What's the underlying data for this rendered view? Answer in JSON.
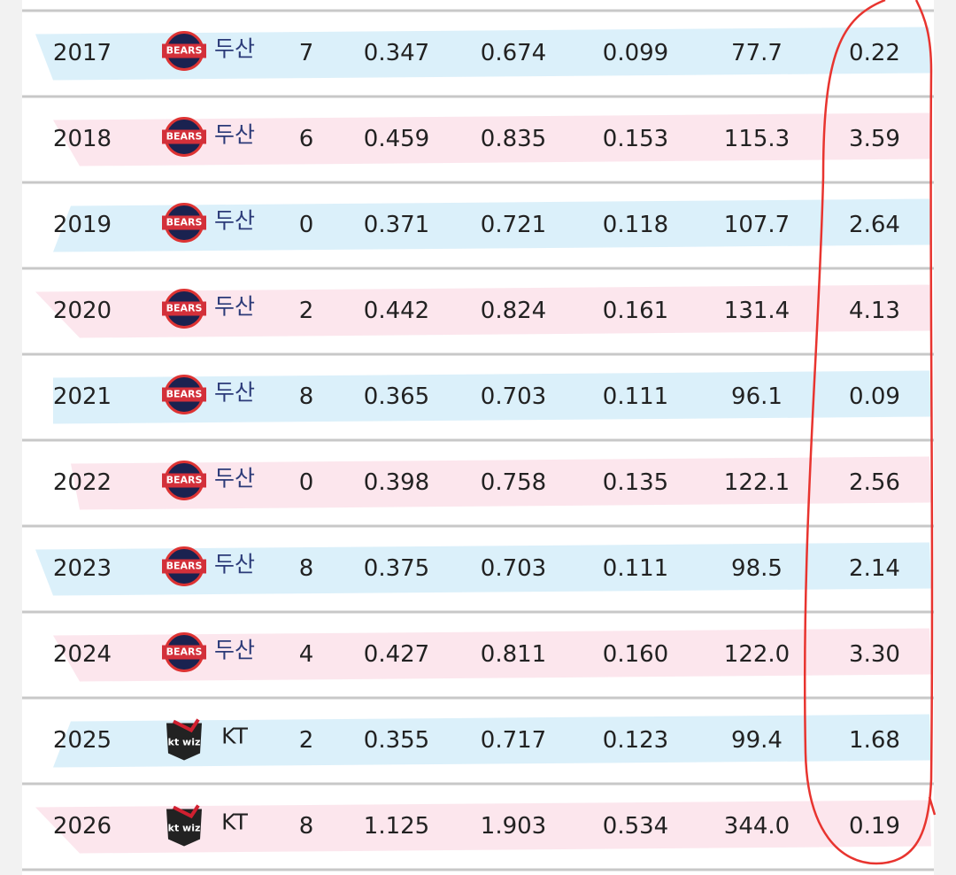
{
  "table": {
    "rows": [
      [
        "2017",
        "BEARS",
        "두산",
        "7",
        "0.347",
        "0.674",
        "0.099",
        "77.7",
        "0.22"
      ],
      [
        "2018",
        "BEARS",
        "두산",
        "6",
        "0.459",
        "0.835",
        "0.153",
        "115.3",
        "3.59"
      ],
      [
        "2019",
        "BEARS",
        "두산",
        "0",
        "0.371",
        "0.721",
        "0.118",
        "107.7",
        "2.64"
      ],
      [
        "2020",
        "BEARS",
        "두산",
        "2",
        "0.442",
        "0.824",
        "0.161",
        "131.4",
        "4.13"
      ],
      [
        "2021",
        "BEARS",
        "두산",
        "8",
        "0.365",
        "0.703",
        "0.111",
        "96.1",
        "0.09"
      ],
      [
        "2022",
        "BEARS",
        "두산",
        "0",
        "0.398",
        "0.758",
        "0.135",
        "122.1",
        "2.56"
      ],
      [
        "2023",
        "BEARS",
        "두산",
        "8",
        "0.375",
        "0.703",
        "0.111",
        "98.5",
        "2.14"
      ],
      [
        "2024",
        "BEARS",
        "두산",
        "4",
        "0.427",
        "0.811",
        "0.160",
        "122.0",
        "3.30"
      ],
      [
        "2025",
        "kt wiz",
        "KT",
        "2",
        "0.355",
        "0.717",
        "0.123",
        "99.4",
        "1.68"
      ],
      [
        "2026",
        "kt wiz",
        "KT",
        "8",
        "1.125",
        "1.903",
        "0.534",
        "344.0",
        "0.19"
      ]
    ]
  }
}
